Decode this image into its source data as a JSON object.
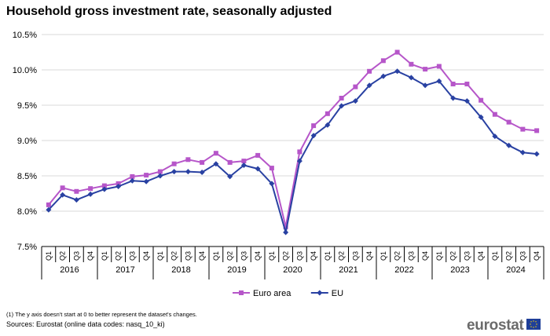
{
  "chart_data": {
    "type": "line",
    "title": "Household gross investment rate, seasonally adjusted",
    "quarter_labels": [
      "Q1",
      "Q2",
      "Q3",
      "Q4"
    ],
    "years": [
      "2016",
      "2017",
      "2018",
      "2019",
      "2020",
      "2021",
      "2022",
      "2023",
      "2024"
    ],
    "ylim": [
      7.5,
      10.5
    ],
    "yticks": [
      "7.5%",
      "8.0%",
      "8.5%",
      "9.0%",
      "9.5%",
      "10.0%",
      "10.5%"
    ],
    "series": [
      {
        "name": "Euro area",
        "color": "#b656c9",
        "marker": "square",
        "values": [
          8.09,
          8.33,
          8.28,
          8.32,
          8.36,
          8.39,
          8.49,
          8.51,
          8.56,
          8.67,
          8.73,
          8.69,
          8.82,
          8.69,
          8.71,
          8.79,
          8.61,
          7.78,
          8.84,
          9.21,
          9.38,
          9.6,
          9.76,
          9.98,
          10.13,
          10.25,
          10.08,
          10.01,
          10.05,
          9.8,
          9.8,
          9.57,
          9.37,
          9.26,
          9.16,
          9.14
        ]
      },
      {
        "name": "EU",
        "color": "#2941a2",
        "marker": "diamond",
        "values": [
          8.02,
          8.23,
          8.16,
          8.24,
          8.31,
          8.35,
          8.43,
          8.42,
          8.5,
          8.56,
          8.56,
          8.55,
          8.67,
          8.49,
          8.65,
          8.6,
          8.39,
          7.7,
          8.71,
          9.07,
          9.22,
          9.49,
          9.56,
          9.78,
          9.91,
          9.98,
          9.89,
          9.78,
          9.84,
          9.6,
          9.56,
          9.33,
          9.06,
          8.93,
          8.83,
          8.81
        ]
      }
    ]
  },
  "footnote": "(1) The y axis doesn't start at 0 to better represent the dataset's changes.",
  "source": "Sources: Eurostat (online data codes: nasq_10_ki)",
  "brand": "eurostat",
  "flag_icon": "eu-flag-icon"
}
